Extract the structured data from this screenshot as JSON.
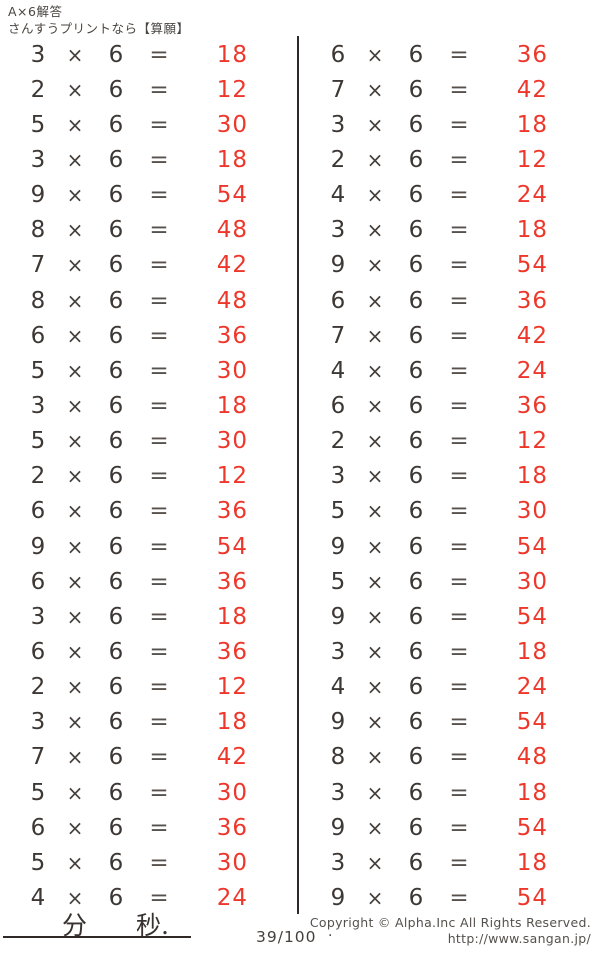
{
  "page": {
    "bg": "#ffffff",
    "text_color": "#3e3835",
    "answer_color": "#ee372b",
    "muted_color": "#55504b"
  },
  "header": {
    "line1": "A×6解答",
    "line2": "さんすうプリントなら【算願】"
  },
  "problems": {
    "operator": "×",
    "equals": "=",
    "left": [
      {
        "a": 3,
        "b": 6,
        "ans": 18
      },
      {
        "a": 2,
        "b": 6,
        "ans": 12
      },
      {
        "a": 5,
        "b": 6,
        "ans": 30
      },
      {
        "a": 3,
        "b": 6,
        "ans": 18
      },
      {
        "a": 9,
        "b": 6,
        "ans": 54
      },
      {
        "a": 8,
        "b": 6,
        "ans": 48
      },
      {
        "a": 7,
        "b": 6,
        "ans": 42
      },
      {
        "a": 8,
        "b": 6,
        "ans": 48
      },
      {
        "a": 6,
        "b": 6,
        "ans": 36
      },
      {
        "a": 5,
        "b": 6,
        "ans": 30
      },
      {
        "a": 3,
        "b": 6,
        "ans": 18
      },
      {
        "a": 5,
        "b": 6,
        "ans": 30
      },
      {
        "a": 2,
        "b": 6,
        "ans": 12
      },
      {
        "a": 6,
        "b": 6,
        "ans": 36
      },
      {
        "a": 9,
        "b": 6,
        "ans": 54
      },
      {
        "a": 6,
        "b": 6,
        "ans": 36
      },
      {
        "a": 3,
        "b": 6,
        "ans": 18
      },
      {
        "a": 6,
        "b": 6,
        "ans": 36
      },
      {
        "a": 2,
        "b": 6,
        "ans": 12
      },
      {
        "a": 3,
        "b": 6,
        "ans": 18
      },
      {
        "a": 7,
        "b": 6,
        "ans": 42
      },
      {
        "a": 5,
        "b": 6,
        "ans": 30
      },
      {
        "a": 6,
        "b": 6,
        "ans": 36
      },
      {
        "a": 5,
        "b": 6,
        "ans": 30
      },
      {
        "a": 4,
        "b": 6,
        "ans": 24
      }
    ],
    "right": [
      {
        "a": 6,
        "b": 6,
        "ans": 36
      },
      {
        "a": 7,
        "b": 6,
        "ans": 42
      },
      {
        "a": 3,
        "b": 6,
        "ans": 18
      },
      {
        "a": 2,
        "b": 6,
        "ans": 12
      },
      {
        "a": 4,
        "b": 6,
        "ans": 24
      },
      {
        "a": 3,
        "b": 6,
        "ans": 18
      },
      {
        "a": 9,
        "b": 6,
        "ans": 54
      },
      {
        "a": 6,
        "b": 6,
        "ans": 36
      },
      {
        "a": 7,
        "b": 6,
        "ans": 42
      },
      {
        "a": 4,
        "b": 6,
        "ans": 24
      },
      {
        "a": 6,
        "b": 6,
        "ans": 36
      },
      {
        "a": 2,
        "b": 6,
        "ans": 12
      },
      {
        "a": 3,
        "b": 6,
        "ans": 18
      },
      {
        "a": 5,
        "b": 6,
        "ans": 30
      },
      {
        "a": 9,
        "b": 6,
        "ans": 54
      },
      {
        "a": 5,
        "b": 6,
        "ans": 30
      },
      {
        "a": 9,
        "b": 6,
        "ans": 54
      },
      {
        "a": 3,
        "b": 6,
        "ans": 18
      },
      {
        "a": 4,
        "b": 6,
        "ans": 24
      },
      {
        "a": 9,
        "b": 6,
        "ans": 54
      },
      {
        "a": 8,
        "b": 6,
        "ans": 48
      },
      {
        "a": 3,
        "b": 6,
        "ans": 18
      },
      {
        "a": 9,
        "b": 6,
        "ans": 54
      },
      {
        "a": 3,
        "b": 6,
        "ans": 18
      },
      {
        "a": 9,
        "b": 6,
        "ans": 54
      }
    ]
  },
  "footer": {
    "time_label_minutes": "分",
    "time_label_seconds": "秒.",
    "page_indicator": "39/100",
    "period": ".",
    "copyright_line1": "Copyright ©  Alpha.Inc All Rights Reserved.",
    "copyright_line2": "http://www.sangan.jp/"
  }
}
